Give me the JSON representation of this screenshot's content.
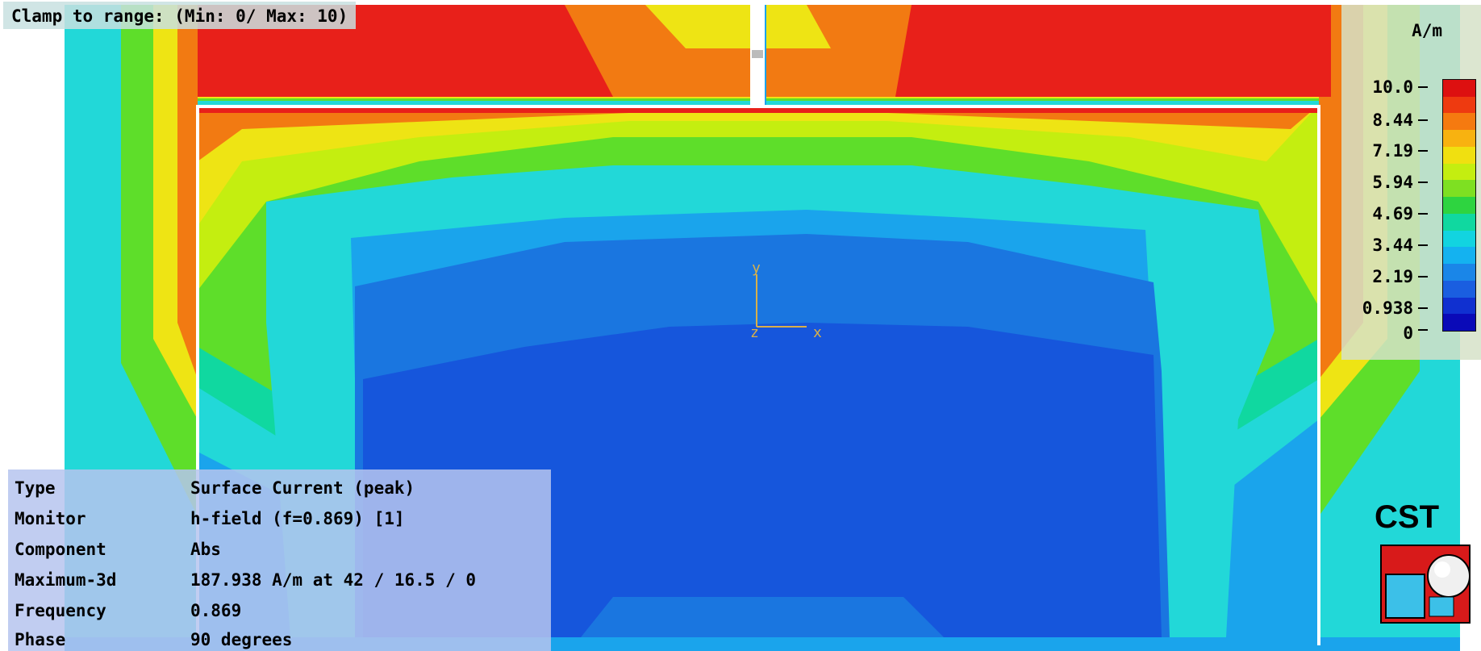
{
  "clamp_label": "Clamp to range: (Min: 0/ Max: 10)",
  "axes": {
    "y": "y",
    "z": "z",
    "x": "x"
  },
  "legend": {
    "unit": "A/m",
    "ticks": [
      "10.0",
      "8.44",
      "7.19",
      "5.94",
      "4.69",
      "3.44",
      "2.19",
      "0.938",
      "0"
    ],
    "colors": [
      "#dd1010",
      "#ee3a10",
      "#f57a10",
      "#f8b210",
      "#f0e010",
      "#c4ee10",
      "#7ee022",
      "#2ed440",
      "#10d8a0",
      "#12d4e0",
      "#14b2f0",
      "#1a86e8",
      "#1a5ee0",
      "#1030d0",
      "#0a0ab8"
    ]
  },
  "info": {
    "rows": [
      {
        "key": "Type",
        "value": "Surface Current (peak)"
      },
      {
        "key": "Monitor",
        "value": "h-field (f=0.869) [1]"
      },
      {
        "key": "Component",
        "value": "Abs"
      },
      {
        "key": "Maximum-3d",
        "value": "187.938 A/m at 42 / 16.5 / 0"
      },
      {
        "key": "Frequency",
        "value": "0.869"
      },
      {
        "key": "Phase",
        "value": "90 degrees"
      }
    ]
  },
  "logo_text": "CST",
  "colors": {
    "red": "#e8201a",
    "orange": "#f27a12",
    "yellow": "#eee414",
    "green": "#5ede2a",
    "cyan": "#22d8d8",
    "light_blue": "#1aa4ec",
    "blue": "#1a76e0",
    "deep_blue": "#1656dc"
  }
}
